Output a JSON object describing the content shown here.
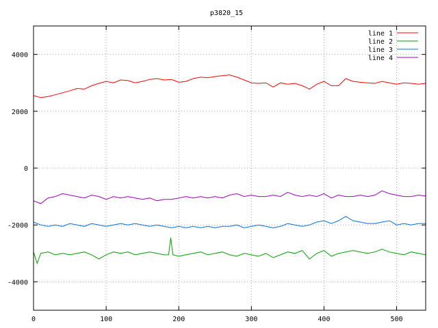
{
  "chart_data": {
    "type": "line",
    "title": "p3820_15",
    "xlabel": "",
    "ylabel": "",
    "xlim": [
      0,
      540
    ],
    "ylim": [
      -5000,
      5000
    ],
    "xticks": [
      0,
      100,
      200,
      300,
      400,
      500
    ],
    "yticks": [
      -4000,
      -2000,
      0,
      2000,
      4000
    ],
    "grid": true,
    "legend_position": "top-right",
    "series": [
      {
        "name": "line 1",
        "color": "#ff0000",
        "x": [
          0,
          10,
          20,
          30,
          40,
          50,
          60,
          70,
          80,
          90,
          100,
          110,
          120,
          130,
          140,
          150,
          160,
          170,
          180,
          190,
          200,
          210,
          220,
          230,
          240,
          250,
          260,
          270,
          280,
          290,
          300,
          310,
          320,
          330,
          340,
          350,
          360,
          370,
          380,
          390,
          400,
          410,
          420,
          430,
          440,
          450,
          460,
          470,
          480,
          490,
          500,
          510,
          520,
          530,
          540
        ],
        "values": [
          2550,
          2480,
          2520,
          2580,
          2650,
          2720,
          2800,
          2780,
          2900,
          2980,
          3050,
          3000,
          3100,
          3080,
          3000,
          3050,
          3120,
          3150,
          3100,
          3120,
          3020,
          3050,
          3150,
          3200,
          3180,
          3220,
          3250,
          3280,
          3200,
          3100,
          3000,
          2980,
          3000,
          2850,
          3000,
          2950,
          2980,
          2900,
          2780,
          2950,
          3050,
          2900,
          2900,
          3150,
          3050,
          3020,
          3000,
          2980,
          3050,
          3000,
          2950,
          3000,
          2980,
          2950,
          2980
        ]
      },
      {
        "name": "line 2",
        "color": "#00a000",
        "x": [
          0,
          5,
          10,
          20,
          30,
          40,
          50,
          60,
          70,
          80,
          90,
          100,
          110,
          120,
          130,
          140,
          150,
          160,
          170,
          180,
          186,
          189,
          192,
          200,
          210,
          220,
          230,
          240,
          250,
          260,
          270,
          280,
          290,
          300,
          310,
          320,
          330,
          340,
          350,
          360,
          370,
          380,
          390,
          400,
          410,
          420,
          430,
          440,
          450,
          460,
          470,
          480,
          490,
          500,
          510,
          520,
          530,
          540
        ],
        "values": [
          -2950,
          -3350,
          -3000,
          -2950,
          -3050,
          -3000,
          -3050,
          -3000,
          -2950,
          -3050,
          -3200,
          -3050,
          -2950,
          -3000,
          -2950,
          -3050,
          -3000,
          -2950,
          -3000,
          -3050,
          -3050,
          -2450,
          -3050,
          -3100,
          -3050,
          -3000,
          -2950,
          -3050,
          -3000,
          -2950,
          -3050,
          -3100,
          -3000,
          -3050,
          -3100,
          -3000,
          -3150,
          -3050,
          -2950,
          -3000,
          -2900,
          -3200,
          -3000,
          -2900,
          -3100,
          -3000,
          -2950,
          -2900,
          -2950,
          -3000,
          -2950,
          -2850,
          -2950,
          -3000,
          -3050,
          -2950,
          -3000,
          -3050
        ]
      },
      {
        "name": "line 3",
        "color": "#0070e0",
        "x": [
          0,
          10,
          20,
          30,
          40,
          50,
          60,
          70,
          80,
          90,
          100,
          110,
          120,
          130,
          140,
          150,
          160,
          170,
          180,
          190,
          200,
          210,
          220,
          230,
          240,
          250,
          260,
          270,
          280,
          290,
          300,
          310,
          320,
          330,
          340,
          350,
          360,
          370,
          380,
          390,
          400,
          410,
          420,
          430,
          440,
          450,
          460,
          470,
          480,
          490,
          500,
          510,
          520,
          530,
          540
        ],
        "values": [
          -1900,
          -2000,
          -2050,
          -2000,
          -2050,
          -1950,
          -2000,
          -2050,
          -1950,
          -2000,
          -2050,
          -2000,
          -1950,
          -2000,
          -1950,
          -2000,
          -2050,
          -2000,
          -2050,
          -2100,
          -2050,
          -2100,
          -2050,
          -2100,
          -2050,
          -2100,
          -2050,
          -2050,
          -2000,
          -2100,
          -2050,
          -2000,
          -2050,
          -2100,
          -2050,
          -1950,
          -2000,
          -2050,
          -2000,
          -1900,
          -1850,
          -1950,
          -1850,
          -1700,
          -1850,
          -1900,
          -1950,
          -1950,
          -1900,
          -1850,
          -2000,
          -1950,
          -2000,
          -1950,
          -1950
        ]
      },
      {
        "name": "line 4",
        "color": "#a000c0",
        "x": [
          0,
          10,
          20,
          30,
          40,
          50,
          60,
          70,
          80,
          90,
          100,
          110,
          120,
          130,
          140,
          150,
          160,
          170,
          180,
          190,
          200,
          210,
          220,
          230,
          240,
          250,
          260,
          270,
          280,
          290,
          300,
          310,
          320,
          330,
          340,
          350,
          360,
          370,
          380,
          390,
          400,
          410,
          420,
          430,
          440,
          450,
          460,
          470,
          480,
          490,
          500,
          510,
          520,
          530,
          540
        ],
        "values": [
          -1150,
          -1250,
          -1050,
          -1000,
          -900,
          -950,
          -1000,
          -1050,
          -950,
          -1000,
          -1100,
          -1000,
          -1050,
          -1000,
          -1050,
          -1100,
          -1050,
          -1150,
          -1100,
          -1100,
          -1050,
          -1000,
          -1050,
          -1000,
          -1050,
          -1000,
          -1050,
          -950,
          -900,
          -1000,
          -950,
          -1000,
          -1000,
          -950,
          -1000,
          -850,
          -950,
          -1000,
          -950,
          -1000,
          -900,
          -1050,
          -950,
          -1000,
          -1000,
          -950,
          -1000,
          -950,
          -800,
          -900,
          -950,
          -1000,
          -1000,
          -950,
          -980
        ]
      }
    ]
  }
}
